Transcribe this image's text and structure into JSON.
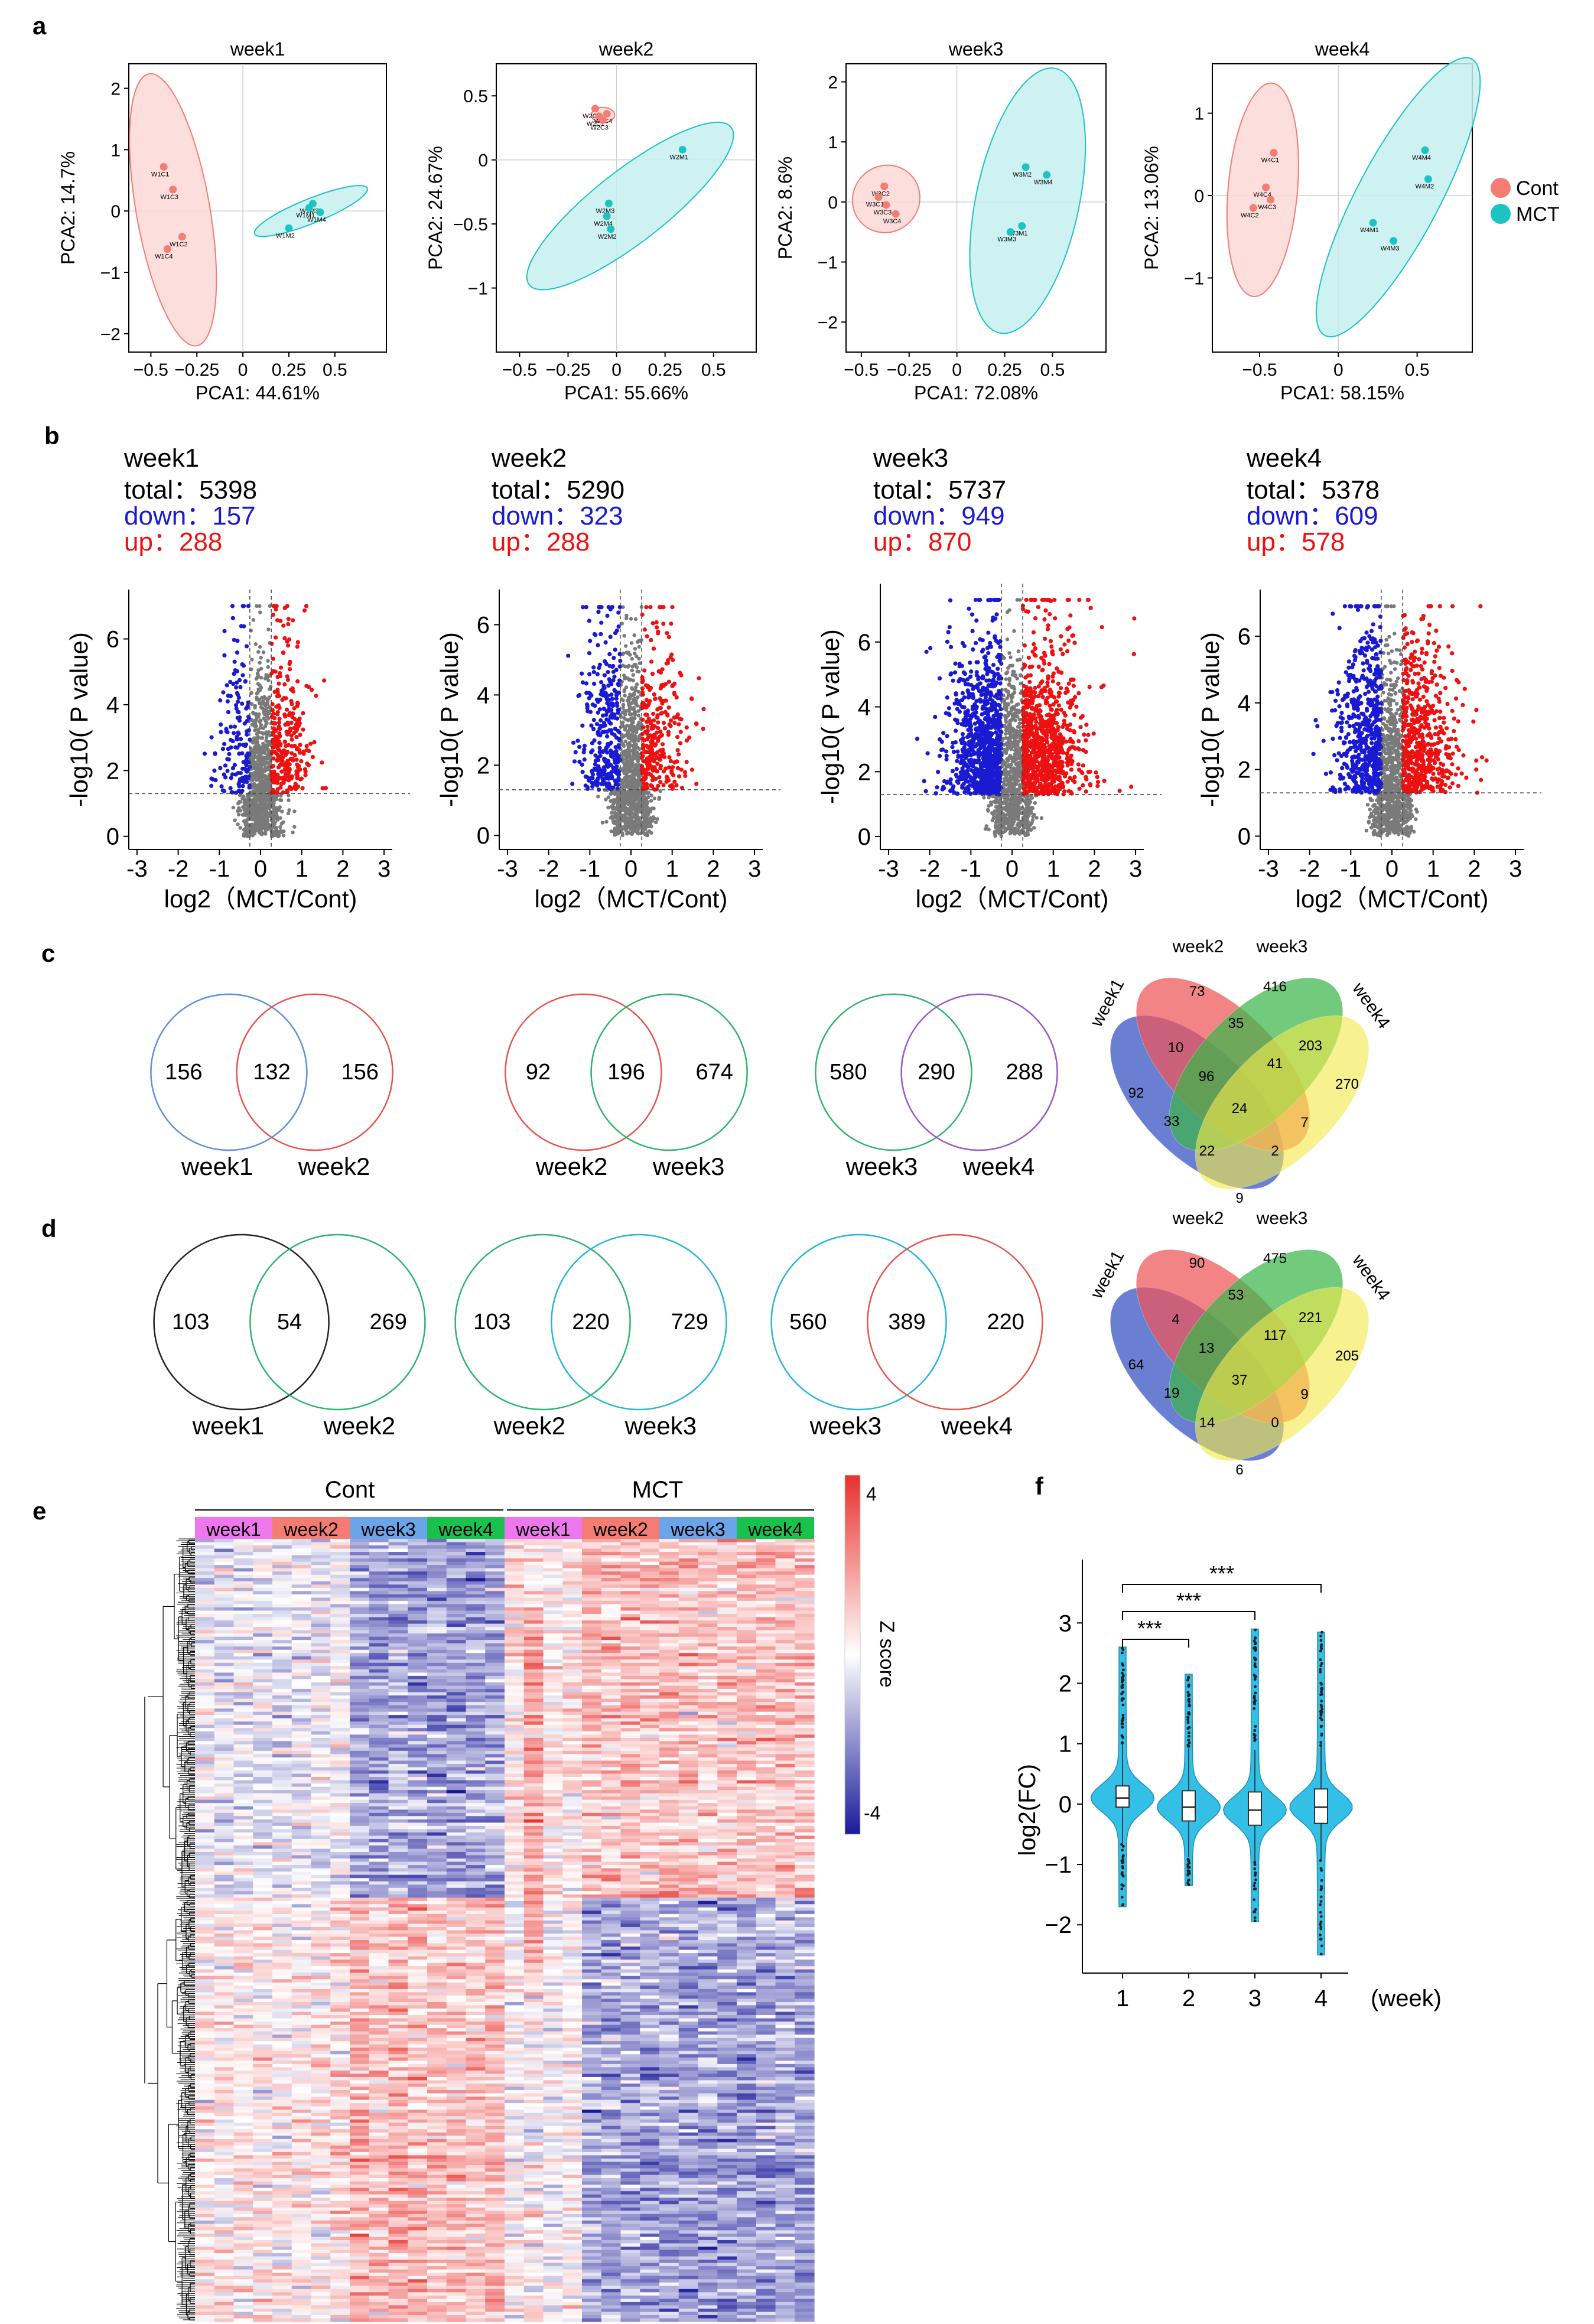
{
  "colors": {
    "cont": "#f47c72",
    "mct": "#1cc3c3",
    "cont_fill": "#fbd9d6",
    "mct_fill": "#c6eef0",
    "down": "#1a1ad2",
    "up": "#ee1111",
    "ns": "#7a7a7a",
    "week1": "#ee77ee",
    "week2": "#f47c72",
    "week3": "#6ba4e8",
    "week4": "#19c24c",
    "heat_high": "#e8302c",
    "heat_mid": "#ffffff",
    "heat_low": "#1a1a9a",
    "violin": "#33bfe6"
  },
  "panel_labels": {
    "a": "a",
    "b": "b",
    "c": "c",
    "d": "d",
    "e": "e",
    "f": "f"
  },
  "legend": {
    "cont": "Cont",
    "mct": "MCT"
  },
  "volcano_common": {
    "total_prefix": "total：",
    "down_prefix": "down：",
    "up_prefix": "up："
  },
  "venn_c": [
    {
      "left": "156",
      "mid": "132",
      "right": "156",
      "label_left": "week1",
      "label_right": "week2",
      "color_left": "#5d8fd8",
      "color_right": "#e8534b"
    },
    {
      "left": "92",
      "mid": "196",
      "right": "674",
      "label_left": "week2",
      "label_right": "week3",
      "color_left": "#e8534b",
      "color_right": "#2db56b"
    },
    {
      "left": "580",
      "mid": "290",
      "right": "288",
      "label_left": "week3",
      "label_right": "week4",
      "color_left": "#2db56b",
      "color_right": "#9b55c6"
    }
  ],
  "venn_d": [
    {
      "left": "103",
      "mid": "54",
      "right": "269",
      "label_left": "week1",
      "label_right": "week2",
      "color_left": "#222222",
      "color_right": "#2db56b"
    },
    {
      "left": "103",
      "mid": "220",
      "right": "729",
      "label_left": "week2",
      "label_right": "week3",
      "color_left": "#2db56b",
      "color_right": "#29b5d8"
    },
    {
      "left": "560",
      "mid": "389",
      "right": "220",
      "label_left": "week3",
      "label_right": "week4",
      "color_left": "#29b5d8",
      "color_right": "#e8534b"
    }
  ],
  "venn4_c": {
    "labels": [
      "week1",
      "week2",
      "week3",
      "week4"
    ],
    "values": {
      "w1": "92",
      "w2": "73",
      "w3": "416",
      "w4": "270",
      "w12": "10",
      "w34": "203",
      "w23": "35",
      "w123": "96",
      "w234": "41",
      "w13": "33",
      "w24": "7",
      "w1234": "24",
      "w134": "22",
      "w124": "2",
      "w14": "9"
    }
  },
  "venn4_d": {
    "labels": [
      "week1",
      "week2",
      "week3",
      "week4"
    ],
    "values": {
      "w1": "64",
      "w2": "90",
      "w3": "475",
      "w4": "205",
      "w12": "4",
      "w34": "221",
      "w23": "53",
      "w123": "13",
      "w234": "117",
      "w13": "19",
      "w24": "9",
      "w1234": "37",
      "w134": "14",
      "w124": "0",
      "w14": "6"
    }
  },
  "heatmap": {
    "group_labels": [
      "Cont",
      "MCT"
    ],
    "week_labels": [
      "week1",
      "week2",
      "week3",
      "week4",
      "week1",
      "week2",
      "week3",
      "week4"
    ],
    "legend_title": "Z score",
    "legend_ticks": [
      "4",
      "-4"
    ]
  },
  "chart_data": [
    {
      "type": "scatter",
      "id": "pca-week1",
      "title": "week1",
      "xlabel": "PCA1: 44.61%",
      "ylabel": "PCA2: 14.7%",
      "xlim": [
        -0.62,
        0.78
      ],
      "ylim": [
        -2.3,
        2.4
      ],
      "xticks": [
        -0.5,
        -0.25,
        0,
        0.25,
        0.5
      ],
      "xtick_labels": [
        "−0.5",
        "−0.25",
        "0",
        "0.25",
        "0.5"
      ],
      "yticks": [
        -2,
        -1,
        0,
        1,
        2
      ],
      "ytick_labels": [
        "−2",
        "−1",
        "0",
        "1",
        "2"
      ],
      "series": [
        {
          "name": "Cont",
          "points": [
            {
              "label": "W1C1",
              "x": -0.43,
              "y": 0.72
            },
            {
              "label": "W1C3",
              "x": -0.38,
              "y": 0.35
            },
            {
              "label": "W1C2",
              "x": -0.33,
              "y": -0.42
            },
            {
              "label": "W1C4",
              "x": -0.41,
              "y": -0.62
            }
          ]
        },
        {
          "name": "MCT",
          "points": [
            {
              "label": "W1M3",
              "x": 0.38,
              "y": 0.12
            },
            {
              "label": "W1M1",
              "x": 0.36,
              "y": 0.05
            },
            {
              "label": "W1M4",
              "x": 0.42,
              "y": -0.02
            },
            {
              "label": "W1M2",
              "x": 0.25,
              "y": -0.28
            }
          ]
        }
      ],
      "ellipses": [
        {
          "series": "Cont",
          "cx": -0.38,
          "cy": 0.02,
          "rx": 0.2,
          "ry": 2.25,
          "angle": -10
        },
        {
          "series": "MCT",
          "cx": 0.37,
          "cy": 0.0,
          "rx": 0.33,
          "ry": 0.2,
          "angle": -22
        }
      ]
    },
    {
      "type": "scatter",
      "id": "pca-week2",
      "title": "week2",
      "xlabel": "PCA1: 55.66%",
      "ylabel": "PCA2: 24.67%",
      "xlim": [
        -0.62,
        0.72
      ],
      "ylim": [
        -1.5,
        0.75
      ],
      "xticks": [
        -0.5,
        -0.25,
        0,
        0.25,
        0.5
      ],
      "xtick_labels": [
        "−0.5",
        "−0.25",
        "0",
        "0.25",
        "0.5"
      ],
      "yticks": [
        -1,
        -0.5,
        0,
        0.5
      ],
      "ytick_labels": [
        "−1",
        "−0.5",
        "0",
        "0.5"
      ],
      "series": [
        {
          "name": "Cont",
          "points": [
            {
              "label": "W2C2",
              "x": -0.11,
              "y": 0.4
            },
            {
              "label": "W2C1",
              "x": -0.09,
              "y": 0.34
            },
            {
              "label": "W2C4",
              "x": -0.05,
              "y": 0.36
            },
            {
              "label": "W2C3",
              "x": -0.07,
              "y": 0.31
            }
          ]
        },
        {
          "name": "MCT",
          "points": [
            {
              "label": "W2M1",
              "x": 0.34,
              "y": 0.08
            },
            {
              "label": "W2M3",
              "x": -0.04,
              "y": -0.34
            },
            {
              "label": "W2M4",
              "x": -0.05,
              "y": -0.44
            },
            {
              "label": "W2M2",
              "x": -0.03,
              "y": -0.54
            }
          ]
        }
      ],
      "ellipses": [
        {
          "series": "Cont",
          "cx": -0.07,
          "cy": 0.35,
          "rx": 0.06,
          "ry": 0.06,
          "angle": 0
        },
        {
          "series": "MCT",
          "cx": 0.07,
          "cy": -0.36,
          "rx": 0.66,
          "ry": 0.28,
          "angle": -38
        }
      ]
    },
    {
      "type": "scatter",
      "id": "pca-week3",
      "title": "week3",
      "xlabel": "PCA1: 72.08%",
      "ylabel": "PCA2: 8.6%",
      "xlim": [
        -0.58,
        0.78
      ],
      "ylim": [
        -2.5,
        2.3
      ],
      "xticks": [
        -0.5,
        -0.25,
        0,
        0.25,
        0.5
      ],
      "xtick_labels": [
        "−0.5",
        "−0.25",
        "0",
        "0.25",
        "0.5"
      ],
      "yticks": [
        -2,
        -1,
        0,
        1,
        2
      ],
      "ytick_labels": [
        "−2",
        "−1",
        "0",
        "1",
        "2"
      ],
      "series": [
        {
          "name": "Cont",
          "points": [
            {
              "label": "W3C2",
              "x": -0.38,
              "y": 0.26
            },
            {
              "label": "W3C1",
              "x": -0.41,
              "y": 0.08
            },
            {
              "label": "W3C3",
              "x": -0.37,
              "y": -0.05
            },
            {
              "label": "W3C4",
              "x": -0.32,
              "y": -0.2
            }
          ]
        },
        {
          "name": "MCT",
          "points": [
            {
              "label": "W3M2",
              "x": 0.36,
              "y": 0.58
            },
            {
              "label": "W3M4",
              "x": 0.47,
              "y": 0.45
            },
            {
              "label": "W3M1",
              "x": 0.34,
              "y": -0.4
            },
            {
              "label": "W3M3",
              "x": 0.28,
              "y": -0.5
            }
          ]
        }
      ],
      "ellipses": [
        {
          "series": "Cont",
          "cx": -0.37,
          "cy": 0.05,
          "rx": 0.18,
          "ry": 0.55,
          "angle": -45
        },
        {
          "series": "MCT",
          "cx": 0.37,
          "cy": 0.02,
          "rx": 0.27,
          "ry": 2.25,
          "angle": 12
        }
      ]
    },
    {
      "type": "scatter",
      "id": "pca-week4",
      "title": "week4",
      "xlabel": "PCA1: 58.15%",
      "ylabel": "PCA2: 13.06%",
      "xlim": [
        -0.8,
        0.85
      ],
      "ylim": [
        -1.9,
        1.6
      ],
      "xticks": [
        -0.5,
        0,
        0.5
      ],
      "xtick_labels": [
        "−0.5",
        "0",
        "0.5"
      ],
      "yticks": [
        -1,
        0,
        1
      ],
      "ytick_labels": [
        "−1",
        "0",
        "1"
      ],
      "series": [
        {
          "name": "Cont",
          "points": [
            {
              "label": "W4C1",
              "x": -0.41,
              "y": 0.52
            },
            {
              "label": "W4C4",
              "x": -0.46,
              "y": 0.1
            },
            {
              "label": "W4C3",
              "x": -0.43,
              "y": -0.05
            },
            {
              "label": "W4C2",
              "x": -0.54,
              "y": -0.15
            }
          ]
        },
        {
          "name": "MCT",
          "points": [
            {
              "label": "W4M4",
              "x": 0.55,
              "y": 0.55
            },
            {
              "label": "W4M2",
              "x": 0.57,
              "y": 0.2
            },
            {
              "label": "W4M1",
              "x": 0.22,
              "y": -0.33
            },
            {
              "label": "W4M3",
              "x": 0.35,
              "y": -0.55
            }
          ]
        }
      ],
      "ellipses": [
        {
          "series": "Cont",
          "cx": -0.48,
          "cy": 0.07,
          "rx": 0.22,
          "ry": 1.3,
          "angle": 5
        },
        {
          "series": "MCT",
          "cx": 0.38,
          "cy": -0.02,
          "rx": 0.26,
          "ry": 1.9,
          "angle": 28
        }
      ]
    },
    {
      "type": "scatter",
      "id": "volcano-week1",
      "title": "week1",
      "total": "5398",
      "down": "157",
      "up": "288",
      "xlabel": "log2（MCT/Cont)",
      "ylabel": "-log10( P value)",
      "xlim": [
        -3.2,
        3.2
      ],
      "ylim": [
        -0.4,
        7.5
      ],
      "xticks": [
        -3,
        -2,
        -1,
        0,
        1,
        2,
        3
      ],
      "xtick_labels": [
        "-3",
        "-2",
        "-1",
        "0",
        "1",
        "2",
        "3"
      ],
      "yticks": [
        0,
        2,
        4,
        6
      ],
      "ytick_labels": [
        "0",
        "2",
        "4",
        "6"
      ],
      "fc_threshold": 0.26,
      "p_threshold": 1.3,
      "sim": {
        "seed": 11,
        "spread": 0.42,
        "n_ns": 900,
        "n_down": 157,
        "n_up": 288
      }
    },
    {
      "type": "scatter",
      "id": "volcano-week2",
      "title": "week2",
      "total": "5290",
      "down": "323",
      "up": "288",
      "xlabel": "log2（MCT/Cont)",
      "ylabel": "-log10( P value)",
      "xlim": [
        -3.2,
        3.2
      ],
      "ylim": [
        -0.4,
        7.0
      ],
      "xticks": [
        -3,
        -2,
        -1,
        0,
        1,
        2,
        3
      ],
      "xtick_labels": [
        "-3",
        "-2",
        "-1",
        "0",
        "1",
        "2",
        "3"
      ],
      "yticks": [
        0,
        2,
        4,
        6
      ],
      "ytick_labels": [
        "0",
        "2",
        "4",
        "6"
      ],
      "fc_threshold": 0.26,
      "p_threshold": 1.3,
      "sim": {
        "seed": 23,
        "spread": 0.5,
        "n_ns": 900,
        "n_down": 323,
        "n_up": 288
      }
    },
    {
      "type": "scatter",
      "id": "volcano-week3",
      "title": "week3",
      "total": "5737",
      "down": "949",
      "up": "870",
      "xlabel": "log2（MCT/Cont)",
      "ylabel": "-log10( P value)",
      "xlim": [
        -3.2,
        3.2
      ],
      "ylim": [
        -0.4,
        7.8
      ],
      "xticks": [
        -3,
        -2,
        -1,
        0,
        1,
        2,
        3
      ],
      "xtick_labels": [
        "-3",
        "-2",
        "-1",
        "0",
        "1",
        "2",
        "3"
      ],
      "yticks": [
        0,
        2,
        4,
        6
      ],
      "ytick_labels": [
        "0",
        "2",
        "4",
        "6"
      ],
      "fc_threshold": 0.26,
      "p_threshold": 1.3,
      "sim": {
        "seed": 37,
        "spread": 0.62,
        "n_ns": 800,
        "n_down": 949,
        "n_up": 870
      }
    },
    {
      "type": "scatter",
      "id": "volcano-week4",
      "title": "week4",
      "total": "5378",
      "down": "609",
      "up": "578",
      "xlabel": "log2（MCT/Cont)",
      "ylabel": "-log10( P value)",
      "xlim": [
        -3.2,
        3.2
      ],
      "ylim": [
        -0.4,
        7.4
      ],
      "xticks": [
        -3,
        -2,
        -1,
        0,
        1,
        2,
        3
      ],
      "xtick_labels": [
        "-3",
        "-2",
        "-1",
        "0",
        "1",
        "2",
        "3"
      ],
      "yticks": [
        0,
        2,
        4,
        6
      ],
      "ytick_labels": [
        "0",
        "2",
        "4",
        "6"
      ],
      "fc_threshold": 0.26,
      "p_threshold": 1.3,
      "sim": {
        "seed": 51,
        "spread": 0.56,
        "n_ns": 850,
        "n_down": 609,
        "n_up": 578
      }
    },
    {
      "type": "violin",
      "id": "violin-weeks",
      "xlabel": "(week)",
      "ylabel": "log2(FC)",
      "categories": [
        "1",
        "2",
        "3",
        "4"
      ],
      "ylim": [
        -2.8,
        4.05
      ],
      "yticks": [
        -2,
        -1,
        0,
        1,
        2,
        3
      ],
      "ytick_labels": [
        "−2",
        "−1",
        "0",
        "1",
        "2",
        "3"
      ],
      "series": [
        {
          "name": "1",
          "median": 0.1,
          "q1": -0.05,
          "q3": 0.3,
          "min": -1.7,
          "max": 2.6
        },
        {
          "name": "2",
          "median": -0.05,
          "q1": -0.28,
          "q3": 0.22,
          "min": -1.35,
          "max": 2.15
        },
        {
          "name": "3",
          "median": -0.1,
          "q1": -0.35,
          "q3": 0.2,
          "min": -1.95,
          "max": 2.9
        },
        {
          "name": "4",
          "median": -0.05,
          "q1": -0.32,
          "q3": 0.25,
          "min": -2.5,
          "max": 2.85
        }
      ],
      "significance": [
        {
          "from": "1",
          "to": "2",
          "label": "***"
        },
        {
          "from": "1",
          "to": "3",
          "label": "***"
        },
        {
          "from": "1",
          "to": "4",
          "label": "***"
        }
      ]
    }
  ]
}
